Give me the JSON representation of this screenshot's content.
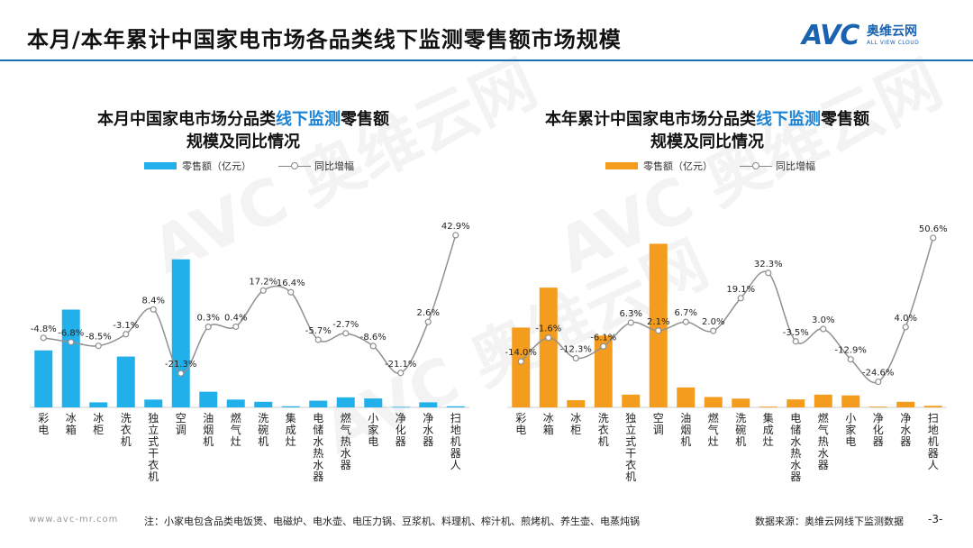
{
  "page": {
    "title": "本月/本年累计中国家电市场各品类线下监测零售额市场规模",
    "logo_mark": "AVC",
    "logo_cn": "奥维云网",
    "logo_en": "ALL VIEW CLOUD",
    "watermark": "AVC 奥维云网",
    "footer_url": "www.avc-mr.com",
    "footer_note": "注：小家电包含品类电饭煲、电磁炉、电水壶、电压力锅、豆浆机、料理机、榨汁机、煎烤机、养生壶、电蒸炖锅",
    "footer_source": "数据来源：奥维云网线下监测数据",
    "page_number": "-3-"
  },
  "colors": {
    "accent": "#1f6fb3",
    "left_bar": "#22b0ea",
    "right_bar": "#f39c1e",
    "line": "#909090"
  },
  "chart_data": [
    {
      "type": "bar",
      "title_prefix": "本月中国家电市场分品类",
      "title_highlight": "线下监测",
      "title_suffix": "零售额",
      "title_line2": "规模及同比情况",
      "bar_legend": "零售额（亿元）",
      "line_legend": "同比增幅",
      "categories": [
        "彩电",
        "冰箱",
        "冰柜",
        "洗衣机",
        "独立式干衣机",
        "空调",
        "油烟机",
        "燃气灶",
        "洗碗机",
        "集成灶",
        "电储水热水器",
        "燃气热水器",
        "小家电",
        "净化器",
        "净水器",
        "扫地机器人"
      ],
      "series": [
        {
          "name": "零售额（亿元）",
          "kind": "bar",
          "values": [
            10.2,
            17.5,
            0.9,
            9.1,
            1.4,
            26.5,
            2.8,
            1.4,
            1.0,
            0.2,
            1.2,
            1.8,
            1.6,
            0.1,
            0.9,
            0.2
          ]
        },
        {
          "name": "同比增幅",
          "kind": "line",
          "values": [
            -4.8,
            -6.8,
            -8.5,
            -3.1,
            8.4,
            -21.3,
            0.3,
            0.4,
            17.2,
            16.4,
            -5.7,
            -2.7,
            -8.6,
            -21.1,
            2.6,
            42.9
          ],
          "labels": [
            "-4.8%",
            "-6.8%",
            "-8.5%",
            "-3.1%",
            "8.4%",
            "-21.3%",
            "0.3%",
            "0.4%",
            "17.2%",
            "16.4%",
            "-5.7%",
            "-2.7%",
            "-8.6%",
            "-21.1%",
            "2.6%",
            "42.9%"
          ]
        }
      ],
      "bar_ylim": [
        0,
        30
      ],
      "line_ylim": [
        -30,
        50
      ]
    },
    {
      "type": "bar",
      "title_prefix": "本年累计中国家电市场分品类",
      "title_highlight": "线下监测",
      "title_suffix": "零售额",
      "title_line2": "规模及同比情况",
      "bar_legend": "零售额（亿元）",
      "line_legend": "同比增幅",
      "categories": [
        "彩电",
        "冰箱",
        "冰柜",
        "洗衣机",
        "独立式干衣机",
        "空调",
        "油烟机",
        "燃气灶",
        "洗碗机",
        "集成灶",
        "电储水热水器",
        "燃气热水器",
        "小家电",
        "净化器",
        "净水器",
        "扫地机器人"
      ],
      "series": [
        {
          "name": "零售额（亿元）",
          "kind": "bar",
          "values": [
            100,
            150,
            9,
            90,
            16,
            205,
            25,
            13,
            11,
            1,
            10,
            16,
            15,
            1,
            7,
            2
          ]
        },
        {
          "name": "同比增幅",
          "kind": "line",
          "values": [
            -14.0,
            -1.6,
            -12.3,
            -6.1,
            6.3,
            2.1,
            6.7,
            2.0,
            19.1,
            32.3,
            -3.5,
            3.0,
            -12.9,
            -24.6,
            4.0,
            50.6
          ],
          "labels": [
            "-14.0%",
            "-1.6%",
            "-12.3%",
            "-6.1%",
            "6.3%",
            "2.1%",
            "6.7%",
            "2.0%",
            "19.1%",
            "32.3%",
            "-3.5%",
            "3.0%",
            "-12.9%",
            "-24.6%",
            "4.0%",
            "50.6%"
          ]
        }
      ],
      "bar_ylim": [
        0,
        210
      ],
      "line_ylim": [
        -30,
        60
      ]
    }
  ]
}
